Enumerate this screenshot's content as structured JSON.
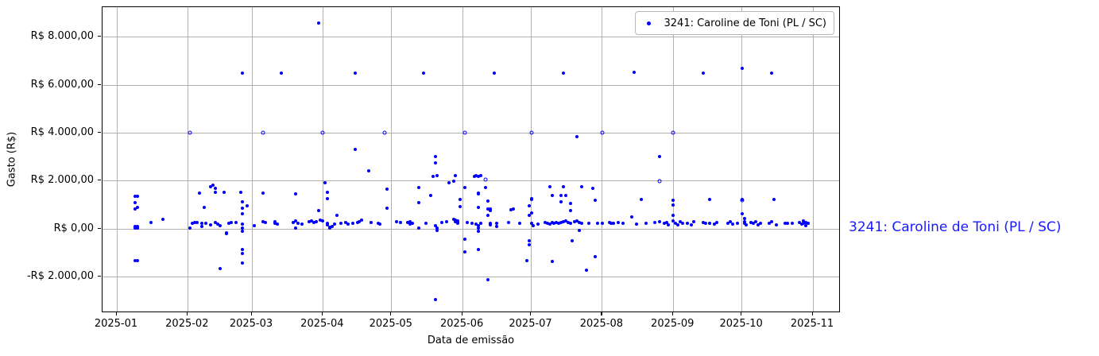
{
  "figure": {
    "background": "#ffffff",
    "point_color": "#0000ff",
    "grid_color": "#b0b0b0",
    "spine_color": "#000000",
    "annotation_color": "#1a1aff"
  },
  "chart_data": {
    "type": "scatter",
    "title": "",
    "xlabel": "Data de emissão",
    "ylabel": "Gasto (R$)",
    "grid": true,
    "legend_position": "upper right",
    "legend": {
      "label": "3241: Caroline de Toni (PL / SC)"
    },
    "annotation": "3241: Caroline de Toni (PL / SC)",
    "ylim": [
      -3515,
      9255
    ],
    "xlim": [
      "2024-12-26",
      "2025-11-13"
    ],
    "y_ticks": [
      {
        "value": 8000,
        "label": "R$ 8.000,00"
      },
      {
        "value": 6000,
        "label": "R$ 6.000,00"
      },
      {
        "value": 4000,
        "label": "R$ 4.000,00"
      },
      {
        "value": 2000,
        "label": "R$ 2.000,00"
      },
      {
        "value": 0,
        "label": "R$ 0,00"
      },
      {
        "value": -2000,
        "label": "-R$ 2.000,00"
      }
    ],
    "x_ticks": [
      {
        "month": 1,
        "label": "2025-01"
      },
      {
        "month": 2,
        "label": "2025-02"
      },
      {
        "month": 3,
        "label": "2025-03"
      },
      {
        "month": 4,
        "label": "2025-04"
      },
      {
        "month": 5,
        "label": "2025-05"
      },
      {
        "month": 6,
        "label": "2025-06"
      },
      {
        "month": 7,
        "label": "2025-07"
      },
      {
        "month": 8,
        "label": "2025-08"
      },
      {
        "month": 9,
        "label": "2025-09"
      },
      {
        "month": 10,
        "label": "2025-10"
      },
      {
        "month": 11,
        "label": "2025-11"
      }
    ],
    "points": [
      [
        "2025-01-09",
        1360
      ],
      [
        "2025-01-10",
        1360
      ],
      [
        "2025-01-09",
        1090
      ],
      [
        "2025-01-09",
        830
      ],
      [
        "2025-01-10",
        890
      ],
      [
        "2025-01-09",
        100
      ],
      [
        "2025-01-10",
        100
      ],
      [
        "2025-01-09",
        30
      ],
      [
        "2025-01-10",
        30
      ],
      [
        "2025-01-16",
        265
      ],
      [
        "2025-01-21",
        400
      ],
      [
        "2025-01-09",
        -1330
      ],
      [
        "2025-01-10",
        -1330
      ],
      [
        "2025-02-02",
        4000,
        "o"
      ],
      [
        "2025-02-02",
        35
      ],
      [
        "2025-02-03",
        230
      ],
      [
        "2025-02-04",
        265
      ],
      [
        "2025-02-05",
        265
      ],
      [
        "2025-02-06",
        1490
      ],
      [
        "2025-02-07",
        230
      ],
      [
        "2025-02-07",
        100
      ],
      [
        "2025-02-08",
        895
      ],
      [
        "2025-02-09",
        230
      ],
      [
        "2025-02-11",
        1760
      ],
      [
        "2025-02-12",
        1825
      ],
      [
        "2025-02-13",
        1690
      ],
      [
        "2025-02-13",
        1525
      ],
      [
        "2025-02-11",
        165
      ],
      [
        "2025-02-13",
        265
      ],
      [
        "2025-02-14",
        200
      ],
      [
        "2025-02-15",
        130
      ],
      [
        "2025-02-15",
        -1660
      ],
      [
        "2025-02-17",
        1525
      ],
      [
        "2025-02-18",
        -200
      ],
      [
        "2025-02-18",
        -165
      ],
      [
        "2025-02-19",
        230
      ],
      [
        "2025-02-20",
        265
      ],
      [
        "2025-02-22",
        265
      ],
      [
        "2025-02-24",
        1525
      ],
      [
        "2025-02-25",
        6500
      ],
      [
        "2025-02-25",
        1130
      ],
      [
        "2025-02-25",
        860
      ],
      [
        "2025-02-25",
        630
      ],
      [
        "2025-02-25",
        200
      ],
      [
        "2025-02-25",
        35
      ],
      [
        "2025-02-25",
        -100
      ],
      [
        "2025-02-25",
        -860
      ],
      [
        "2025-02-25",
        -1030
      ],
      [
        "2025-02-25",
        -1425
      ],
      [
        "2025-02-27",
        960
      ],
      [
        "2025-03-02",
        130
      ],
      [
        "2025-03-06",
        4000,
        "o"
      ],
      [
        "2025-03-06",
        1490
      ],
      [
        "2025-03-06",
        300
      ],
      [
        "2025-03-07",
        265
      ],
      [
        "2025-03-11",
        300
      ],
      [
        "2025-03-11",
        230
      ],
      [
        "2025-03-12",
        200
      ],
      [
        "2025-03-14",
        6500
      ],
      [
        "2025-03-19",
        265
      ],
      [
        "2025-03-20",
        1455
      ],
      [
        "2025-03-20",
        330
      ],
      [
        "2025-03-20",
        35
      ],
      [
        "2025-03-21",
        230
      ],
      [
        "2025-03-23",
        200
      ],
      [
        "2025-03-26",
        300
      ],
      [
        "2025-03-27",
        330
      ],
      [
        "2025-03-28",
        265
      ],
      [
        "2025-03-29",
        300
      ],
      [
        "2025-03-30",
        8600
      ],
      [
        "2025-03-30",
        760
      ],
      [
        "2025-03-31",
        365
      ],
      [
        "2025-04-01",
        4000,
        "o"
      ],
      [
        "2025-04-01",
        330
      ],
      [
        "2025-04-02",
        1920
      ],
      [
        "2025-04-03",
        1525
      ],
      [
        "2025-04-03",
        1260
      ],
      [
        "2025-04-03",
        230
      ],
      [
        "2025-04-03",
        165
      ],
      [
        "2025-04-04",
        65
      ],
      [
        "2025-04-04",
        35
      ],
      [
        "2025-04-05",
        100
      ],
      [
        "2025-04-06",
        200
      ],
      [
        "2025-04-07",
        565
      ],
      [
        "2025-04-09",
        230
      ],
      [
        "2025-04-11",
        265
      ],
      [
        "2025-04-12",
        200
      ],
      [
        "2025-04-14",
        230
      ],
      [
        "2025-04-15",
        6500
      ],
      [
        "2025-04-15",
        3320
      ],
      [
        "2025-04-16",
        265
      ],
      [
        "2025-04-17",
        300
      ],
      [
        "2025-04-18",
        365
      ],
      [
        "2025-04-21",
        2420
      ],
      [
        "2025-04-22",
        265
      ],
      [
        "2025-04-25",
        230
      ],
      [
        "2025-04-26",
        200
      ],
      [
        "2025-04-28",
        4000,
        "o"
      ],
      [
        "2025-04-29",
        1655
      ],
      [
        "2025-04-29",
        860
      ],
      [
        "2025-05-03",
        300
      ],
      [
        "2025-05-05",
        265
      ],
      [
        "2025-05-08",
        265
      ],
      [
        "2025-05-09",
        200
      ],
      [
        "2025-05-09",
        300
      ],
      [
        "2025-05-10",
        230
      ],
      [
        "2025-05-13",
        1720
      ],
      [
        "2025-05-13",
        1090
      ],
      [
        "2025-05-13",
        35
      ],
      [
        "2025-05-15",
        6500
      ],
      [
        "2025-05-16",
        230
      ],
      [
        "2025-05-18",
        1390
      ],
      [
        "2025-05-19",
        2190
      ],
      [
        "2025-05-20",
        3010
      ],
      [
        "2025-05-20",
        2750
      ],
      [
        "2025-05-20",
        -2950
      ],
      [
        "2025-05-20",
        130
      ],
      [
        "2025-05-21",
        2220
      ],
      [
        "2025-05-21",
        35
      ],
      [
        "2025-05-21",
        -65
      ],
      [
        "2025-05-23",
        265
      ],
      [
        "2025-05-25",
        300
      ],
      [
        "2025-05-26",
        1925
      ],
      [
        "2025-05-28",
        1990
      ],
      [
        "2025-05-28",
        400
      ],
      [
        "2025-05-29",
        2220
      ],
      [
        "2025-05-29",
        365
      ],
      [
        "2025-05-29",
        300
      ],
      [
        "2025-05-30",
        230
      ],
      [
        "2025-05-30",
        330
      ],
      [
        "2025-05-30",
        265
      ],
      [
        "2025-05-31",
        1230
      ],
      [
        "2025-05-31",
        930
      ],
      [
        "2025-06-02",
        4000,
        "o"
      ],
      [
        "2025-06-02",
        1725
      ],
      [
        "2025-06-02",
        -960
      ],
      [
        "2025-06-02",
        -430
      ],
      [
        "2025-06-03",
        280
      ],
      [
        "2025-06-05",
        230
      ],
      [
        "2025-06-06",
        2190
      ],
      [
        "2025-06-07",
        2220
      ],
      [
        "2025-06-07",
        200
      ],
      [
        "2025-06-08",
        2190
      ],
      [
        "2025-06-08",
        1490
      ],
      [
        "2025-06-08",
        1450
      ],
      [
        "2025-06-08",
        895
      ],
      [
        "2025-06-08",
        130
      ],
      [
        "2025-06-08",
        35
      ],
      [
        "2025-06-08",
        -100
      ],
      [
        "2025-06-08",
        -860
      ],
      [
        "2025-06-09",
        2220
      ],
      [
        "2025-06-09",
        230
      ],
      [
        "2025-06-11",
        1725
      ],
      [
        "2025-06-11",
        2060,
        "o"
      ],
      [
        "2025-06-12",
        1160
      ],
      [
        "2025-06-12",
        830
      ],
      [
        "2025-06-12",
        565
      ],
      [
        "2025-06-12",
        -2120
      ],
      [
        "2025-06-13",
        830
      ],
      [
        "2025-06-13",
        760
      ],
      [
        "2025-06-13",
        230
      ],
      [
        "2025-06-13",
        165
      ],
      [
        "2025-06-15",
        6500
      ],
      [
        "2025-06-16",
        230
      ],
      [
        "2025-06-16",
        100
      ],
      [
        "2025-06-21",
        265
      ],
      [
        "2025-06-22",
        795
      ],
      [
        "2025-06-23",
        830
      ],
      [
        "2025-06-26",
        230
      ],
      [
        "2025-06-29",
        -1325
      ],
      [
        "2025-06-30",
        960
      ],
      [
        "2025-06-30",
        565
      ],
      [
        "2025-06-30",
        -495
      ],
      [
        "2025-06-30",
        -660
      ],
      [
        "2025-07-01",
        4000,
        "o"
      ],
      [
        "2025-07-01",
        1230
      ],
      [
        "2025-07-01",
        1260
      ],
      [
        "2025-07-01",
        660
      ],
      [
        "2025-07-01",
        230
      ],
      [
        "2025-07-02",
        130
      ],
      [
        "2025-07-04",
        200
      ],
      [
        "2025-07-07",
        265
      ],
      [
        "2025-07-08",
        230
      ],
      [
        "2025-07-09",
        1760
      ],
      [
        "2025-07-09",
        200
      ],
      [
        "2025-07-10",
        1390
      ],
      [
        "2025-07-10",
        265
      ],
      [
        "2025-07-10",
        -1360
      ],
      [
        "2025-07-11",
        230
      ],
      [
        "2025-07-12",
        280
      ],
      [
        "2025-07-13",
        230
      ],
      [
        "2025-07-14",
        1390
      ],
      [
        "2025-07-14",
        1130
      ],
      [
        "2025-07-14",
        265
      ],
      [
        "2025-07-15",
        6500
      ],
      [
        "2025-07-15",
        1760
      ],
      [
        "2025-07-15",
        300
      ],
      [
        "2025-07-16",
        1390
      ],
      [
        "2025-07-16",
        330
      ],
      [
        "2025-07-17",
        265
      ],
      [
        "2025-07-18",
        1060
      ],
      [
        "2025-07-18",
        760
      ],
      [
        "2025-07-18",
        230
      ],
      [
        "2025-07-19",
        -495
      ],
      [
        "2025-07-20",
        300
      ],
      [
        "2025-07-21",
        3840
      ],
      [
        "2025-07-21",
        330
      ],
      [
        "2025-07-22",
        -65
      ],
      [
        "2025-07-22",
        265
      ],
      [
        "2025-07-23",
        1760
      ],
      [
        "2025-07-23",
        230
      ],
      [
        "2025-07-25",
        -1720
      ],
      [
        "2025-07-26",
        230
      ],
      [
        "2025-07-28",
        1690
      ],
      [
        "2025-07-29",
        1190
      ],
      [
        "2025-07-29",
        -1160
      ],
      [
        "2025-07-30",
        230
      ],
      [
        "2025-08-01",
        4000,
        "o"
      ],
      [
        "2025-08-01",
        230
      ],
      [
        "2025-08-04",
        265
      ],
      [
        "2025-08-05",
        230
      ],
      [
        "2025-08-06",
        230
      ],
      [
        "2025-08-08",
        265
      ],
      [
        "2025-08-10",
        230
      ],
      [
        "2025-08-14",
        500
      ],
      [
        "2025-08-15",
        6520
      ],
      [
        "2025-08-16",
        200
      ],
      [
        "2025-08-18",
        1230
      ],
      [
        "2025-08-20",
        230
      ],
      [
        "2025-08-24",
        265
      ],
      [
        "2025-08-26",
        3010
      ],
      [
        "2025-08-26",
        2000,
        "o"
      ],
      [
        "2025-08-26",
        300
      ],
      [
        "2025-08-28",
        230
      ],
      [
        "2025-08-29",
        265
      ],
      [
        "2025-08-30",
        165
      ],
      [
        "2025-09-01",
        4000,
        "o"
      ],
      [
        "2025-09-01",
        1190
      ],
      [
        "2025-09-01",
        1000
      ],
      [
        "2025-09-01",
        565
      ],
      [
        "2025-09-01",
        330
      ],
      [
        "2025-09-02",
        230
      ],
      [
        "2025-09-03",
        165
      ],
      [
        "2025-09-04",
        300
      ],
      [
        "2025-09-05",
        230
      ],
      [
        "2025-09-07",
        230
      ],
      [
        "2025-09-09",
        165
      ],
      [
        "2025-09-10",
        300
      ],
      [
        "2025-09-14",
        6500
      ],
      [
        "2025-09-14",
        265
      ],
      [
        "2025-09-15",
        230
      ],
      [
        "2025-09-17",
        1230
      ],
      [
        "2025-09-17",
        230
      ],
      [
        "2025-09-19",
        200
      ],
      [
        "2025-09-20",
        265
      ],
      [
        "2025-09-25",
        230
      ],
      [
        "2025-09-26",
        300
      ],
      [
        "2025-09-27",
        200
      ],
      [
        "2025-09-29",
        230
      ],
      [
        "2025-10-01",
        6700
      ],
      [
        "2025-10-01",
        1230
      ],
      [
        "2025-10-01",
        1190,
        "o"
      ],
      [
        "2025-10-01",
        630
      ],
      [
        "2025-10-02",
        430
      ],
      [
        "2025-10-02",
        300
      ],
      [
        "2025-10-02",
        230
      ],
      [
        "2025-10-03",
        165
      ],
      [
        "2025-10-05",
        265
      ],
      [
        "2025-10-06",
        230
      ],
      [
        "2025-10-07",
        300
      ],
      [
        "2025-10-08",
        165
      ],
      [
        "2025-10-09",
        230
      ],
      [
        "2025-10-13",
        230
      ],
      [
        "2025-10-14",
        6500
      ],
      [
        "2025-10-14",
        300
      ],
      [
        "2025-10-15",
        1230
      ],
      [
        "2025-10-16",
        165
      ],
      [
        "2025-10-20",
        230
      ],
      [
        "2025-10-21",
        230
      ],
      [
        "2025-10-23",
        230
      ],
      [
        "2025-10-26",
        265
      ],
      [
        "2025-10-27",
        200
      ],
      [
        "2025-10-28",
        330
      ],
      [
        "2025-10-28",
        230
      ],
      [
        "2025-10-29",
        265
      ],
      [
        "2025-10-29",
        130
      ],
      [
        "2025-10-30",
        230
      ]
    ]
  }
}
